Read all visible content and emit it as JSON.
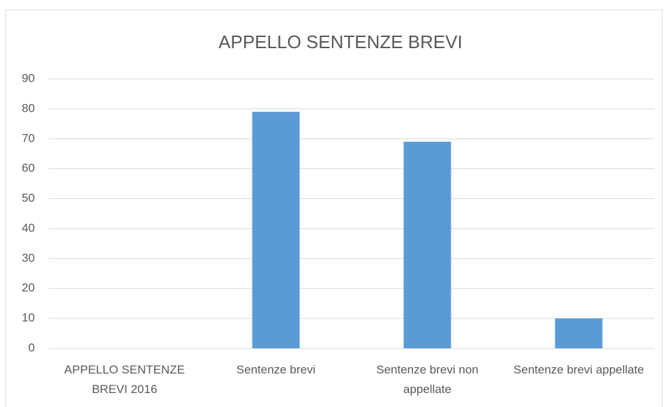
{
  "chart_data": {
    "type": "bar",
    "title": "APPELLO SENTENZE BREVI",
    "categories": [
      "APPELLO SENTENZE BREVI 2016",
      "Sentenze brevi",
      "Sentenze brevi non appellate",
      "Sentenze brevi appellate"
    ],
    "values": [
      null,
      79,
      69,
      10
    ],
    "color": "#5b9bd5",
    "ylim": [
      0,
      90
    ],
    "yticks": [
      0,
      10,
      20,
      30,
      40,
      50,
      60,
      70,
      80,
      90
    ],
    "grid": true
  }
}
